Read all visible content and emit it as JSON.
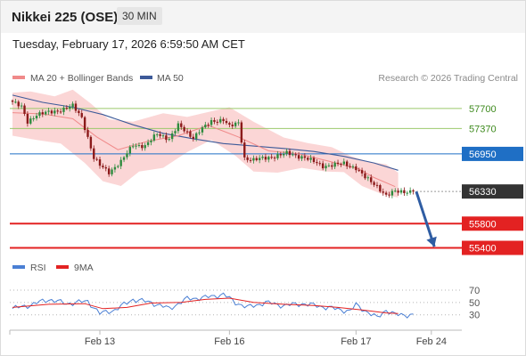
{
  "header": {
    "title": "Nikkei 225 (OSE)",
    "interval": "30 MIN"
  },
  "timestamp": "Tuesday, February 17, 2026 6:59:50 AM CET",
  "legend": {
    "ma20": "MA 20 + Bollinger Bands",
    "ma50": "MA 50",
    "copyright": "Research © 2026 Trading Central"
  },
  "rsi_legend": {
    "rsi": "RSI",
    "ma9": "9MA"
  },
  "colors": {
    "candle_up": "#2e8b3e",
    "candle_down": "#8b1a1a",
    "band_fill": "#fbd6d6",
    "ma20": "#f08a8a",
    "ma50": "#3d5a99",
    "resistance": "#9bc96b",
    "support": "#e32222",
    "pivot": "#1f6fc5",
    "last": "#333333",
    "arrow": "#2f5da3",
    "rsi": "#4a7fd4",
    "rsi_ma": "#e32222"
  },
  "chart_data": {
    "type": "candlestick",
    "y_range": [
      55290,
      58050
    ],
    "x_ticks": [
      {
        "label": "Feb 13",
        "index": 29
      },
      {
        "label": "Feb 16",
        "index": 72
      },
      {
        "label": "Feb 17",
        "index": 114
      },
      {
        "label": "Feb 24",
        "index": 139
      }
    ],
    "levels": [
      {
        "value": 57700,
        "label": "57700",
        "kind": "resistance"
      },
      {
        "value": 57370,
        "label": "57370",
        "kind": "resistance"
      },
      {
        "value": 56950,
        "label": "56950",
        "kind": "pivot"
      },
      {
        "value": 56330,
        "label": "56330",
        "kind": "last"
      },
      {
        "value": 55800,
        "label": "55800",
        "kind": "support"
      },
      {
        "value": 55400,
        "label": "55400",
        "kind": "support"
      }
    ],
    "anchors": [
      [
        0,
        57810
      ],
      [
        3,
        57720
      ],
      [
        5,
        57480
      ],
      [
        8,
        57600
      ],
      [
        15,
        57660
      ],
      [
        20,
        57740
      ],
      [
        23,
        57550
      ],
      [
        25,
        57220
      ],
      [
        27,
        56880
      ],
      [
        29,
        56760
      ],
      [
        32,
        56650
      ],
      [
        36,
        56820
      ],
      [
        40,
        57100
      ],
      [
        44,
        57080
      ],
      [
        48,
        57280
      ],
      [
        52,
        57200
      ],
      [
        55,
        57420
      ],
      [
        60,
        57220
      ],
      [
        62,
        57330
      ],
      [
        66,
        57480
      ],
      [
        70,
        57520
      ],
      [
        72,
        57400
      ],
      [
        75,
        57460
      ],
      [
        77,
        56880
      ],
      [
        80,
        56850
      ],
      [
        86,
        56900
      ],
      [
        91,
        56960
      ],
      [
        97,
        56890
      ],
      [
        103,
        56750
      ],
      [
        110,
        56790
      ],
      [
        114,
        56720
      ],
      [
        117,
        56560
      ],
      [
        121,
        56420
      ],
      [
        124,
        56260
      ],
      [
        127,
        56330
      ],
      [
        133,
        56330
      ]
    ],
    "ma50": [
      [
        0,
        57920
      ],
      [
        10,
        57800
      ],
      [
        20,
        57720
      ],
      [
        30,
        57600
      ],
      [
        40,
        57430
      ],
      [
        50,
        57290
      ],
      [
        60,
        57200
      ],
      [
        70,
        57120
      ],
      [
        80,
        57080
      ],
      [
        90,
        57040
      ],
      [
        100,
        56990
      ],
      [
        110,
        56910
      ],
      [
        120,
        56800
      ],
      [
        128,
        56680
      ]
    ],
    "ma20": [
      [
        0,
        57630
      ],
      [
        10,
        57610
      ],
      [
        20,
        57530
      ],
      [
        28,
        57230
      ],
      [
        35,
        57020
      ],
      [
        45,
        57160
      ],
      [
        55,
        57250
      ],
      [
        65,
        57420
      ],
      [
        75,
        57230
      ],
      [
        85,
        57000
      ],
      [
        95,
        56950
      ],
      [
        105,
        56830
      ],
      [
        115,
        56700
      ],
      [
        120,
        56560
      ],
      [
        127,
        56410
      ]
    ],
    "band_upper": [
      [
        0,
        57960
      ],
      [
        6,
        57980
      ],
      [
        14,
        57900
      ],
      [
        20,
        58010
      ],
      [
        26,
        57780
      ],
      [
        32,
        57520
      ],
      [
        40,
        57480
      ],
      [
        50,
        57620
      ],
      [
        58,
        57560
      ],
      [
        64,
        57630
      ],
      [
        72,
        57720
      ],
      [
        80,
        57480
      ],
      [
        90,
        57220
      ],
      [
        98,
        57130
      ],
      [
        106,
        57060
      ],
      [
        112,
        56920
      ],
      [
        118,
        56820
      ],
      [
        124,
        56780
      ],
      [
        128,
        56640
      ]
    ],
    "band_lower": [
      [
        0,
        57250
      ],
      [
        8,
        57180
      ],
      [
        16,
        57120
      ],
      [
        24,
        56800
      ],
      [
        30,
        56500
      ],
      [
        36,
        56420
      ],
      [
        42,
        56660
      ],
      [
        50,
        56720
      ],
      [
        58,
        56980
      ],
      [
        66,
        57180
      ],
      [
        74,
        56920
      ],
      [
        80,
        56660
      ],
      [
        88,
        56640
      ],
      [
        96,
        56720
      ],
      [
        104,
        56660
      ],
      [
        110,
        56650
      ],
      [
        116,
        56420
      ],
      [
        122,
        56300
      ],
      [
        128,
        56230
      ]
    ],
    "projection": {
      "from": [
        134,
        56330
      ],
      "to": [
        140,
        55420
      ]
    },
    "rsi": {
      "ticks": [
        70,
        50,
        30
      ],
      "y_range": [
        8,
        80
      ],
      "anchors": [
        [
          0,
          40
        ],
        [
          6,
          46
        ],
        [
          12,
          55
        ],
        [
          18,
          48
        ],
        [
          25,
          52
        ],
        [
          29,
          32
        ],
        [
          34,
          38
        ],
        [
          40,
          55
        ],
        [
          46,
          50
        ],
        [
          52,
          40
        ],
        [
          58,
          56
        ],
        [
          64,
          58
        ],
        [
          70,
          63
        ],
        [
          74,
          50
        ],
        [
          78,
          42
        ],
        [
          84,
          50
        ],
        [
          90,
          45
        ],
        [
          96,
          48
        ],
        [
          102,
          44
        ],
        [
          108,
          39
        ],
        [
          112,
          36
        ],
        [
          114,
          46
        ],
        [
          118,
          34
        ],
        [
          121,
          25
        ],
        [
          124,
          38
        ],
        [
          127,
          30
        ],
        [
          133,
          30
        ]
      ],
      "ma": [
        [
          0,
          42
        ],
        [
          12,
          47
        ],
        [
          24,
          48
        ],
        [
          30,
          40
        ],
        [
          38,
          42
        ],
        [
          46,
          49
        ],
        [
          56,
          50
        ],
        [
          64,
          55
        ],
        [
          72,
          57
        ],
        [
          80,
          50
        ],
        [
          90,
          47
        ],
        [
          100,
          45
        ],
        [
          108,
          42
        ],
        [
          116,
          38
        ],
        [
          124,
          33
        ],
        [
          128,
          32
        ]
      ]
    }
  }
}
